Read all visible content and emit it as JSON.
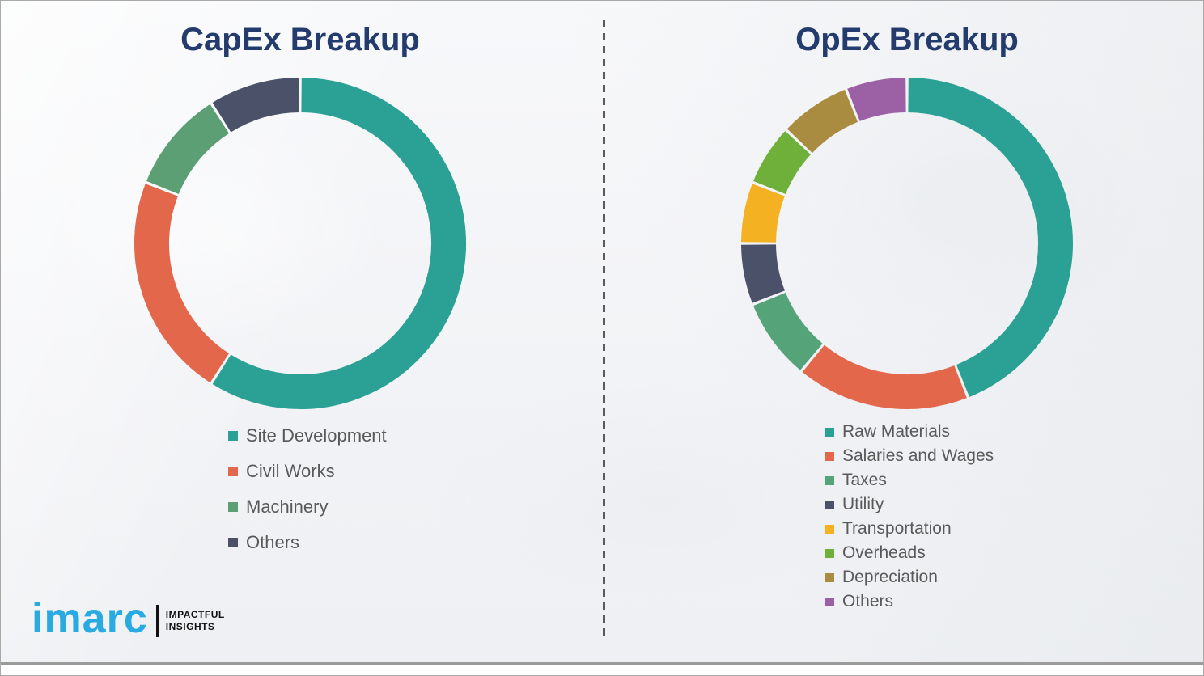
{
  "theme": {
    "background": "#f4f5f7",
    "title_color": "#233c6d",
    "legend_text_color": "#595959",
    "divider_color": "#5a5a5a",
    "logo_blue": "#29abe2"
  },
  "branding": {
    "logo_text": "imarc",
    "tagline_line1": "IMPACTFUL",
    "tagline_line2": "INSIGHTS"
  },
  "chart_data": [
    {
      "type": "pie",
      "variant": "donut",
      "title": "CapEx Breakup",
      "start_angle_deg": 0,
      "direction": "clockwise",
      "legend_position": "below-left",
      "categories": [
        "Site Development",
        "Civil Works",
        "Machinery",
        "Others"
      ],
      "values": [
        59,
        22,
        10,
        9
      ],
      "colors": [
        "#2aa194",
        "#e2674b",
        "#5c9f74",
        "#4a5168"
      ]
    },
    {
      "type": "pie",
      "variant": "donut",
      "title": "OpEx Breakup",
      "start_angle_deg": 0,
      "direction": "clockwise",
      "legend_position": "below-left",
      "categories": [
        "Raw Materials",
        "Salaries and Wages",
        "Taxes",
        "Utility",
        "Transportation",
        "Overheads",
        "Depreciation",
        "Others"
      ],
      "values": [
        44,
        17,
        8,
        6,
        6,
        6,
        7,
        6
      ],
      "colors": [
        "#2aa194",
        "#e2674b",
        "#55a378",
        "#4a5168",
        "#f4b223",
        "#6fb03a",
        "#a98c3f",
        "#9c61a5"
      ]
    }
  ]
}
